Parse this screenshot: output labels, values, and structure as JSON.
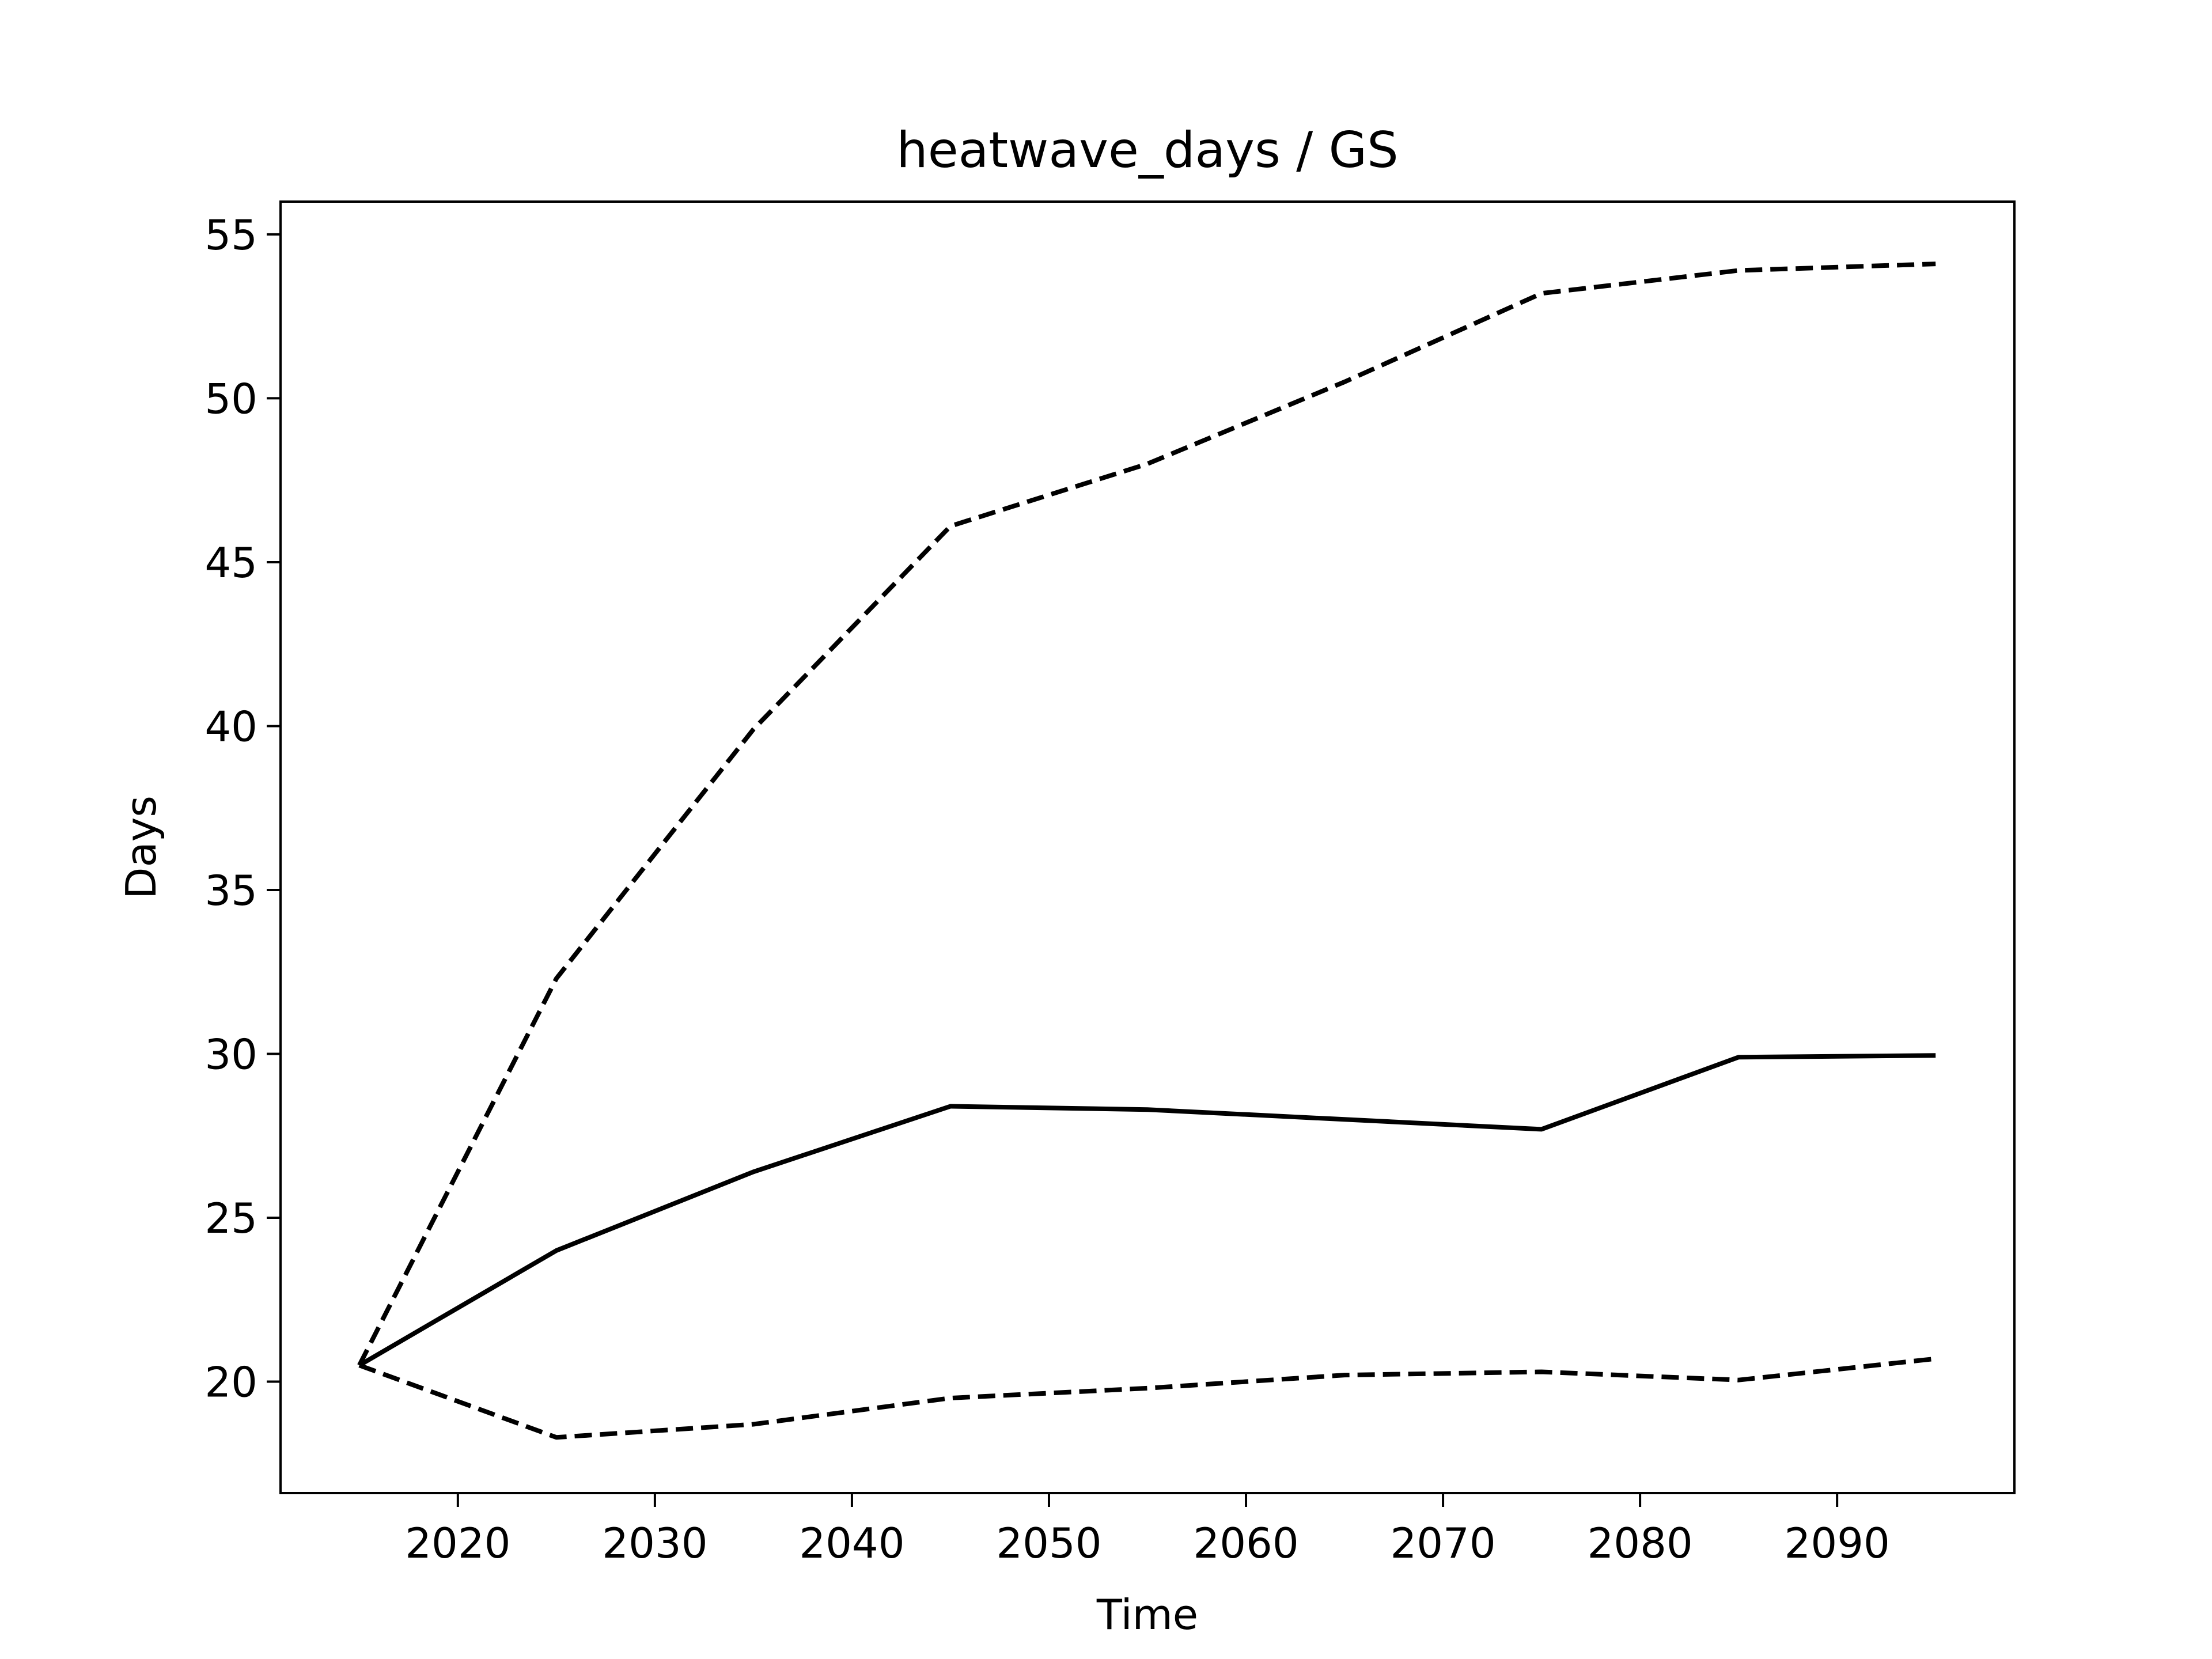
{
  "chart_data": {
    "type": "line",
    "title": "heatwave_days / GS",
    "xlabel": "Time",
    "ylabel": "Days",
    "xlim": [
      2011,
      2099
    ],
    "ylim": [
      16.6,
      56.0
    ],
    "xticks": [
      2020,
      2030,
      2040,
      2050,
      2060,
      2070,
      2080,
      2090
    ],
    "yticks": [
      20,
      25,
      30,
      35,
      40,
      45,
      50,
      55
    ],
    "grid": false,
    "x": [
      2015,
      2025,
      2035,
      2045,
      2055,
      2065,
      2075,
      2085,
      2095
    ],
    "series": [
      {
        "style": "dashed",
        "color": "#000000",
        "values": [
          20.5,
          32.3,
          39.9,
          46.1,
          48.0,
          50.5,
          53.2,
          53.9,
          54.1
        ]
      },
      {
        "style": "solid",
        "color": "#000000",
        "values": [
          20.5,
          24.0,
          26.4,
          28.4,
          28.3,
          28.0,
          27.7,
          29.9,
          29.95
        ]
      },
      {
        "style": "dashed",
        "color": "#000000",
        "values": [
          20.5,
          18.3,
          18.7,
          19.5,
          19.8,
          20.2,
          20.3,
          20.05,
          20.7
        ]
      }
    ]
  }
}
